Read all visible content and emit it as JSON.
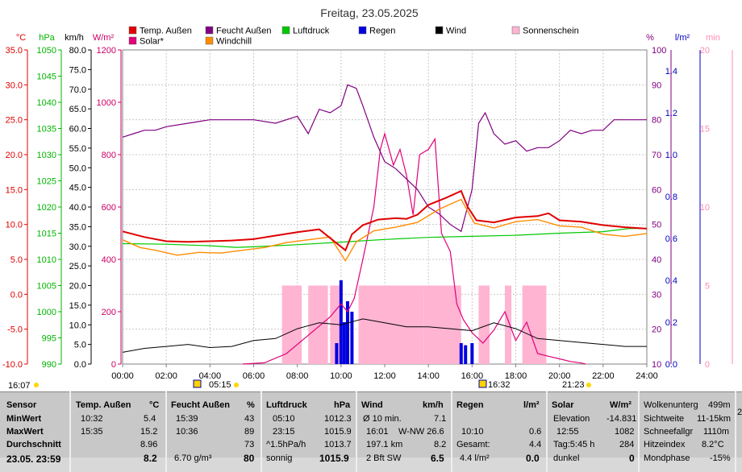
{
  "chart_data": {
    "type": "line",
    "title": "Freitag, 23.05.2025",
    "legend": [
      {
        "name": "Temp. Außen",
        "color": "#e00000"
      },
      {
        "name": "Feucht Außen",
        "color": "#800080"
      },
      {
        "name": "Luftdruck",
        "color": "#00c800"
      },
      {
        "name": "Regen",
        "color": "#0000e0"
      },
      {
        "name": "Wind",
        "color": "#000000"
      },
      {
        "name": "Sonnenschein",
        "color": "#ffb4d2"
      },
      {
        "name": "Solar*",
        "color": "#e0007a"
      },
      {
        "name": "Windchill",
        "color": "#ff8c00"
      }
    ],
    "x_ticks": [
      "00:00",
      "02:00",
      "04:00",
      "06:00",
      "08:00",
      "10:00",
      "12:00",
      "14:00",
      "16:00",
      "18:00",
      "20:00",
      "22:00",
      "24:00"
    ],
    "axes": {
      "temp": {
        "unit": "°C",
        "color": "#e00000",
        "ticks": [
          "35.0",
          "30.0",
          "25.0",
          "20.0",
          "15.0",
          "10.0",
          "5.0",
          "0.0",
          "-5.0",
          "-10.0"
        ]
      },
      "hpa": {
        "unit": "hPa",
        "color": "#00b400",
        "ticks": [
          "1050",
          "1045",
          "1040",
          "1035",
          "1030",
          "1025",
          "1020",
          "1015",
          "1010",
          "1005",
          "1000",
          "995",
          "990"
        ]
      },
      "kmh": {
        "unit": "km/h",
        "color": "#000000",
        "ticks": [
          "80.0",
          "75.0",
          "70.0",
          "65.0",
          "60.0",
          "55.0",
          "50.0",
          "45.0",
          "40.0",
          "35.0",
          "30.0",
          "25.0",
          "20.0",
          "15.0",
          "10.0",
          "5.0",
          "0.0"
        ]
      },
      "wm2": {
        "unit": "W/m²",
        "color": "#cc0066",
        "ticks": [
          "1200",
          "1000",
          "800",
          "600",
          "400",
          "200",
          "0"
        ]
      },
      "pct": {
        "unit": "%",
        "color": "#800080",
        "ticks": [
          "100",
          "90",
          "80",
          "70",
          "60",
          "50",
          "40",
          "30",
          "20",
          "10"
        ]
      },
      "lm2": {
        "unit": "l/m²",
        "color": "#0000c0",
        "ticks": [
          "1.4",
          "1.2",
          "1.0",
          "0.8",
          "0.6",
          "0.4",
          "0.2",
          "0.0"
        ]
      },
      "min": {
        "unit": "min",
        "color": "#ff8cb4",
        "ticks": [
          "20",
          "15",
          "10",
          "5",
          "0"
        ]
      }
    },
    "series": [
      {
        "name": "Temp. Außen",
        "unit": "°C",
        "points": [
          [
            0,
            9.0
          ],
          [
            1,
            8.2
          ],
          [
            2,
            7.6
          ],
          [
            3,
            7.5
          ],
          [
            4,
            7.6
          ],
          [
            5,
            7.7
          ],
          [
            6,
            7.9
          ],
          [
            7,
            8.4
          ],
          [
            8,
            8.9
          ],
          [
            9,
            9.3
          ],
          [
            10.2,
            6.3
          ],
          [
            10.5,
            8.6
          ],
          [
            11,
            9.9
          ],
          [
            11.7,
            10.7
          ],
          [
            12.5,
            10.9
          ],
          [
            13,
            10.8
          ],
          [
            13.5,
            11.4
          ],
          [
            14,
            12.8
          ],
          [
            14.8,
            13.8
          ],
          [
            15.5,
            14.8
          ],
          [
            15.8,
            12.5
          ],
          [
            16.2,
            10.6
          ],
          [
            17,
            10.3
          ],
          [
            18,
            11.0
          ],
          [
            19,
            11.2
          ],
          [
            19.5,
            11.6
          ],
          [
            20,
            10.6
          ],
          [
            21,
            10.4
          ],
          [
            22,
            9.9
          ],
          [
            23,
            9.6
          ],
          [
            24,
            9.4
          ]
        ]
      },
      {
        "name": "Windchill",
        "unit": "°C",
        "points": [
          [
            0,
            7.8
          ],
          [
            0.8,
            6.7
          ],
          [
            1.5,
            6.3
          ],
          [
            2.5,
            5.6
          ],
          [
            3.5,
            6.0
          ],
          [
            4.5,
            5.9
          ],
          [
            5.5,
            6.3
          ],
          [
            6.5,
            6.7
          ],
          [
            7.5,
            7.4
          ],
          [
            8.5,
            7.8
          ],
          [
            9.5,
            8.2
          ],
          [
            10.2,
            4.8
          ],
          [
            10.7,
            7.5
          ],
          [
            11.5,
            9.1
          ],
          [
            12.5,
            9.6
          ],
          [
            13.5,
            10.3
          ],
          [
            14.5,
            12.2
          ],
          [
            15.5,
            13.6
          ],
          [
            16.1,
            10.2
          ],
          [
            17,
            9.5
          ],
          [
            18,
            10.4
          ],
          [
            19,
            10.7
          ],
          [
            20,
            9.8
          ],
          [
            21,
            9.6
          ],
          [
            22,
            8.6
          ],
          [
            23,
            8.3
          ],
          [
            24,
            8.7
          ]
        ]
      },
      {
        "name": "Feucht Außen",
        "unit": "%",
        "points": [
          [
            0,
            75
          ],
          [
            0.5,
            76
          ],
          [
            1,
            77
          ],
          [
            1.5,
            77
          ],
          [
            2,
            78
          ],
          [
            3,
            79
          ],
          [
            4,
            80
          ],
          [
            5,
            80
          ],
          [
            6,
            80
          ],
          [
            7,
            79
          ],
          [
            8,
            81
          ],
          [
            8.5,
            76
          ],
          [
            9,
            83
          ],
          [
            9.5,
            82
          ],
          [
            10,
            84
          ],
          [
            10.3,
            90
          ],
          [
            10.7,
            89
          ],
          [
            11,
            84
          ],
          [
            11.5,
            75
          ],
          [
            12,
            68
          ],
          [
            12.5,
            66
          ],
          [
            13,
            63
          ],
          [
            13.5,
            60
          ],
          [
            14,
            55
          ],
          [
            14.5,
            53
          ],
          [
            15,
            50
          ],
          [
            15.5,
            48
          ],
          [
            16,
            60
          ],
          [
            16.3,
            79
          ],
          [
            16.6,
            82
          ],
          [
            17,
            76
          ],
          [
            17.5,
            73
          ],
          [
            18,
            74
          ],
          [
            18.5,
            71
          ],
          [
            19,
            72
          ],
          [
            19.5,
            72
          ],
          [
            20,
            74
          ],
          [
            20.5,
            77
          ],
          [
            21,
            76
          ],
          [
            21.5,
            77
          ],
          [
            22,
            77
          ],
          [
            22.5,
            80
          ],
          [
            23,
            80
          ],
          [
            24,
            80
          ]
        ]
      },
      {
        "name": "Luftdruck",
        "unit": "hPa",
        "points": [
          [
            0,
            1013.0
          ],
          [
            2,
            1012.9
          ],
          [
            4,
            1012.6
          ],
          [
            5.2,
            1012.3
          ],
          [
            6,
            1012.4
          ],
          [
            8,
            1012.8
          ],
          [
            10,
            1013.3
          ],
          [
            12,
            1013.8
          ],
          [
            14,
            1014.2
          ],
          [
            16,
            1014.4
          ],
          [
            18,
            1014.6
          ],
          [
            20,
            1015.0
          ],
          [
            22,
            1015.3
          ],
          [
            23.2,
            1015.9
          ],
          [
            24,
            1015.9
          ]
        ]
      },
      {
        "name": "Solar*",
        "unit": "W/m²",
        "points": [
          [
            5.5,
            0
          ],
          [
            6.5,
            5
          ],
          [
            7.5,
            40
          ],
          [
            8.5,
            110
          ],
          [
            9.5,
            180
          ],
          [
            10,
            230
          ],
          [
            10.3,
            200
          ],
          [
            10.6,
            250
          ],
          [
            11,
            400
          ],
          [
            11.5,
            600
          ],
          [
            11.8,
            820
          ],
          [
            12,
            880
          ],
          [
            12.4,
            760
          ],
          [
            12.7,
            820
          ],
          [
            13,
            720
          ],
          [
            13.3,
            570
          ],
          [
            13.6,
            800
          ],
          [
            14,
            820
          ],
          [
            14.3,
            860
          ],
          [
            14.6,
            500
          ],
          [
            15,
            430
          ],
          [
            15.3,
            230
          ],
          [
            15.6,
            170
          ],
          [
            16,
            120
          ],
          [
            16.5,
            80
          ],
          [
            17,
            130
          ],
          [
            17.5,
            200
          ],
          [
            18,
            90
          ],
          [
            18.5,
            160
          ],
          [
            19,
            40
          ],
          [
            19.5,
            30
          ],
          [
            20,
            20
          ],
          [
            20.5,
            10
          ],
          [
            21,
            4
          ],
          [
            21.2,
            0
          ]
        ]
      },
      {
        "name": "Wind",
        "unit": "km/h",
        "points": [
          [
            0,
            3.0
          ],
          [
            1,
            4.0
          ],
          [
            2,
            4.5
          ],
          [
            3,
            5.0
          ],
          [
            4,
            4.2
          ],
          [
            5,
            4.5
          ],
          [
            6,
            6.0
          ],
          [
            7,
            6.5
          ],
          [
            8,
            9.0
          ],
          [
            9,
            10.5
          ],
          [
            10,
            10.0
          ],
          [
            11,
            11.5
          ],
          [
            12,
            10.5
          ],
          [
            13,
            9.5
          ],
          [
            14,
            9.5
          ],
          [
            15,
            9.0
          ],
          [
            16,
            8.5
          ],
          [
            17,
            10.5
          ],
          [
            18,
            9.0
          ],
          [
            19,
            6.5
          ],
          [
            20,
            6.0
          ],
          [
            21,
            5.5
          ],
          [
            22,
            5.0
          ],
          [
            23,
            4.5
          ],
          [
            24,
            4.5
          ]
        ]
      }
    ],
    "rain": [
      [
        9.8,
        0.1
      ],
      [
        10.0,
        0.4
      ],
      [
        10.15,
        0.2
      ],
      [
        10.3,
        0.3
      ],
      [
        10.5,
        0.25
      ],
      [
        15.5,
        0.1
      ],
      [
        15.7,
        0.09
      ],
      [
        16.0,
        0.1
      ]
    ],
    "sunshine": [
      [
        7.3,
        8.2
      ],
      [
        8.5,
        9.4
      ],
      [
        9.5,
        10.0
      ],
      [
        10.8,
        13.8
      ],
      [
        13.8,
        15.5
      ],
      [
        16.3,
        16.8
      ],
      [
        17.5,
        17.8
      ],
      [
        18.3,
        19.4
      ]
    ],
    "sunrise": "05:15",
    "sunset": "16:32",
    "moonrise": "21:23",
    "moonset": "16:07"
  },
  "stats": {
    "sensor": {
      "header": "Sensor",
      "min": "MinWert",
      "max": "MaxWert",
      "avg": "Durchschnitt",
      "date": "23.05. 23:59"
    },
    "temp": {
      "label": "Temp. Außen",
      "unit": "°C",
      "min_time": "10:32",
      "min": "5.4",
      "max_time": "15:35",
      "max": "15.2",
      "avg": "8.96",
      "current": "8.2"
    },
    "humidity": {
      "label": "Feucht Außen",
      "unit": "%",
      "min_time": "15:39",
      "min": "43",
      "max_time": "10:36",
      "max": "89",
      "avg": "73",
      "abs": "6.70 g/m³",
      "current": "80"
    },
    "pressure": {
      "label": "Luftdruck",
      "unit": "hPa",
      "min_time": "05:10",
      "min": "1012.3",
      "max_time": "23:15",
      "max": "1015.9",
      "trend_label": "^1.5hPa/h",
      "avg": "1013.7",
      "weather": "sonnig",
      "current": "1015.9"
    },
    "wind": {
      "label": "Wind",
      "unit": "km/h",
      "l1": "Ø 10 min.",
      "v1": "7.1",
      "t2": "16:01",
      "dir2": "W-NW 26.6",
      "dist": "197.1 km",
      "v3": "8.2",
      "bft": "2 Bft SW",
      "current": "6.5"
    },
    "rain": {
      "label": "Regen",
      "unit": "l/m²",
      "t1": "10:10",
      "v1": "0.6",
      "l2": "Gesamt:",
      "v2": "4.4",
      "l3": "4.4 l/m²",
      "current": "0.0"
    },
    "solar": {
      "label": "Solar",
      "unit": "W/m²",
      "l1": "Elevation",
      "v1": "-14.831",
      "t2": "12:55",
      "v2": "1082",
      "l3": "Tag:5:45 h",
      "v3": "284",
      "l4": "dunkel",
      "v4": "0"
    },
    "extra": {
      "l1": "Wolkenunterg",
      "v1": "499m",
      "l2": "Sichtweite",
      "v2": "11-15km",
      "l3": "Schneefallgr",
      "v3": "1110m",
      "l4": "Hitzeindex",
      "v4": "8.2°C",
      "l5": "Mondphase",
      "v5": "-15%"
    },
    "edge": "2"
  }
}
